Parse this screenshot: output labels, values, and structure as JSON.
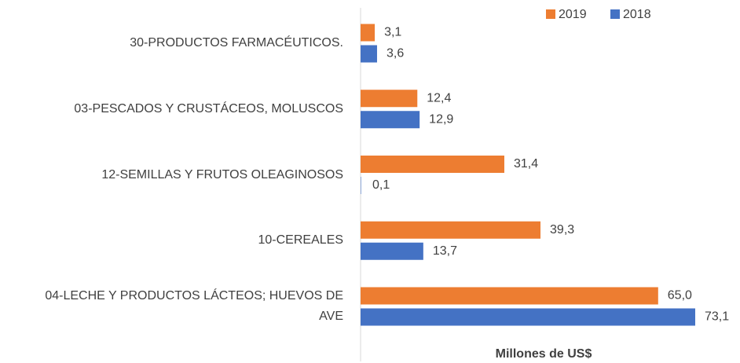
{
  "chart_data": {
    "type": "bar",
    "orientation": "horizontal",
    "x_label": "Millones de US$",
    "categories": [
      "30-PRODUCTOS FARMACÉUTICOS.",
      "03-PESCADOS Y CRUSTÁCEOS, MOLUSCOS",
      "12-SEMILLAS Y FRUTOS OLEAGINOSOS",
      "10-CEREALES",
      "04-LECHE Y PRODUCTOS LÁCTEOS; HUEVOS DE AVE"
    ],
    "series": [
      {
        "name": "2019",
        "color": "#ed7d31",
        "values": [
          3.1,
          12.4,
          31.4,
          39.3,
          65.0
        ],
        "value_labels": [
          "3,1",
          "12,4",
          "31,4",
          "39,3",
          "65,0"
        ]
      },
      {
        "name": "2018",
        "color": "#4472c4",
        "values": [
          3.6,
          12.9,
          0.1,
          13.7,
          73.1
        ],
        "value_labels": [
          "3,6",
          "12,9",
          "0,1",
          "13,7",
          "73,1"
        ]
      }
    ],
    "legend": "top-right"
  }
}
